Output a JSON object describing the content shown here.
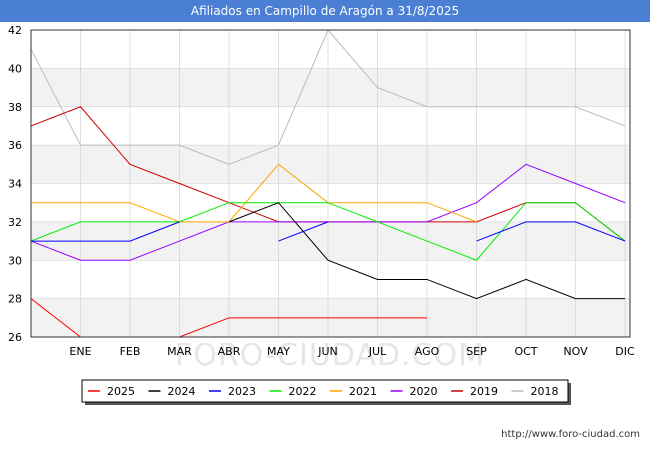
{
  "header": {
    "title": "Afiliados en Campillo de Aragón a 31/8/2025"
  },
  "watermark": "FORO-CIUDAD.COM",
  "footer": {
    "url": "http://www.foro-ciudad.com"
  },
  "colors": {
    "title_bar": "#4a7fd4",
    "band": "#f2f2f2",
    "grid": "#cccccc"
  },
  "chart_data": {
    "type": "line",
    "title": "Afiliados en Campillo de Aragón a 31/8/2025",
    "categories": [
      "",
      "ENE",
      "FEB",
      "MAR",
      "ABR",
      "MAY",
      "JUN",
      "JUL",
      "AGO",
      "SEP",
      "OCT",
      "NOV",
      "DIC"
    ],
    "ylim": [
      26,
      42
    ],
    "yticks": [
      26,
      28,
      30,
      32,
      34,
      36,
      38,
      40,
      42
    ],
    "grid": true,
    "legend_position": "bottom",
    "series": [
      {
        "name": "2025",
        "color": "#ff0000",
        "values": [
          28,
          26,
          null,
          26,
          27,
          27,
          27,
          27,
          27,
          null,
          null,
          null,
          null
        ]
      },
      {
        "name": "2024",
        "color": "#000000",
        "values": [
          null,
          null,
          null,
          null,
          32,
          33,
          30,
          29,
          29,
          28,
          29,
          28,
          28
        ]
      },
      {
        "name": "2023",
        "color": "#0000ff",
        "values": [
          31,
          31,
          31,
          32,
          null,
          31,
          32,
          null,
          null,
          31,
          32,
          32,
          31
        ]
      },
      {
        "name": "2022",
        "color": "#00ee00",
        "values": [
          31,
          32,
          32,
          32,
          33,
          33,
          33,
          32,
          31,
          30,
          33,
          33,
          31
        ]
      },
      {
        "name": "2021",
        "color": "#ffa500",
        "values": [
          33,
          33,
          33,
          32,
          32,
          35,
          33,
          33,
          33,
          32,
          null,
          null,
          null
        ]
      },
      {
        "name": "2020",
        "color": "#9900ff",
        "values": [
          31,
          30,
          30,
          31,
          32,
          32,
          32,
          32,
          32,
          33,
          35,
          34,
          33
        ]
      },
      {
        "name": "2019",
        "color": "#cc0000",
        "values": [
          37,
          38,
          35,
          34,
          33,
          32,
          32,
          32,
          32,
          32,
          33,
          33,
          31
        ]
      },
      {
        "name": "2018",
        "color": "#bbbbbb",
        "values": [
          41,
          36,
          36,
          36,
          35,
          36,
          42,
          39,
          38,
          38,
          38,
          38,
          37
        ]
      }
    ]
  }
}
